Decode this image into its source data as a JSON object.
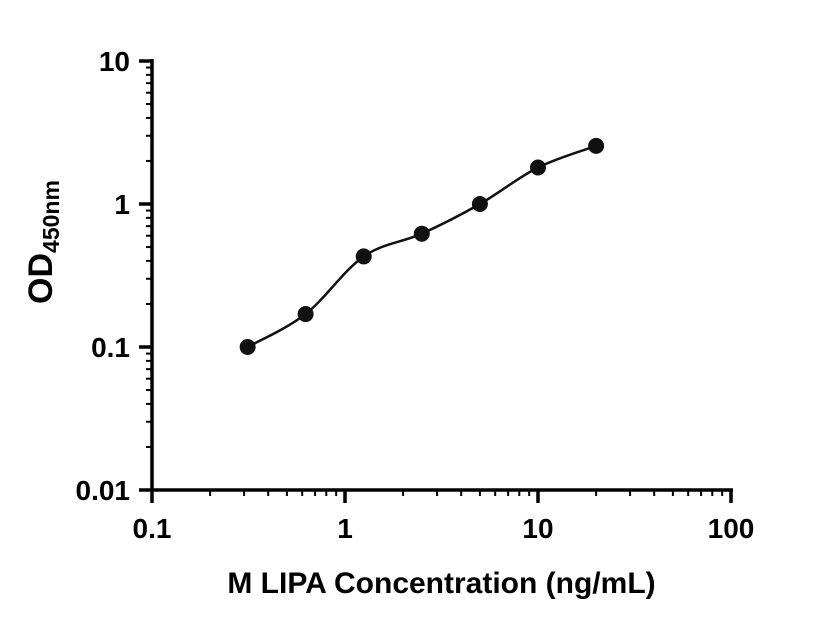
{
  "chart_data": {
    "type": "scatter",
    "title": "",
    "xlabel": "M LIPA Concentration (ng/mL)",
    "ylabel_main": "OD",
    "ylabel_sub": "450nm",
    "xscale": "log",
    "yscale": "log",
    "xlim": [
      0.1,
      100
    ],
    "ylim": [
      0.01,
      10
    ],
    "x_ticks": [
      0.1,
      1,
      10,
      100
    ],
    "x_tick_labels": [
      "0.1",
      "1",
      "10",
      "100"
    ],
    "y_ticks": [
      0.01,
      0.1,
      1,
      10
    ],
    "y_tick_labels": [
      "0.01",
      "0.1",
      "1",
      "10"
    ],
    "grid": false,
    "legend": "none",
    "x": [
      0.313,
      0.625,
      1.25,
      2.5,
      5,
      10,
      20
    ],
    "y": [
      0.1,
      0.17,
      0.43,
      0.62,
      1.0,
      1.8,
      2.55
    ],
    "curve": "smooth-fit-through-points",
    "marker": "filled-circle",
    "marker_color": "#111111",
    "line_color": "#111111",
    "axis_color": "#000000",
    "background_color": "#ffffff"
  }
}
